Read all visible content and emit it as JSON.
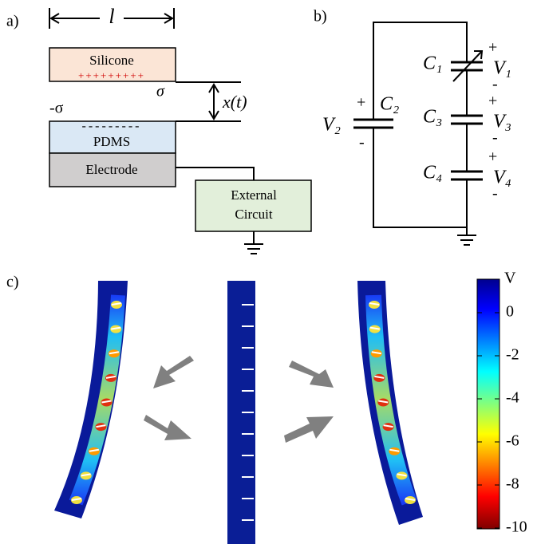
{
  "panel_a": {
    "label": "a)",
    "length_symbol": "l",
    "top_layer": "Silicone",
    "top_charges": "+++++++++",
    "top_charge_density": "σ",
    "gap": "x(t)",
    "bottom_charge_density": "-σ",
    "bottom_charges": "---------",
    "dielectric": "PDMS",
    "electrode": "Electrode",
    "circuit": [
      "External",
      "Circuit"
    ]
  },
  "panel_b": {
    "label": "b)",
    "source": {
      "name": "C₂",
      "voltage": "V₂",
      "plus": "+",
      "minus": "-"
    },
    "capacitors": [
      {
        "name": "C₁",
        "voltage": "V₁",
        "plus": "+",
        "minus": "-"
      },
      {
        "name": "C₃",
        "voltage": "V₃",
        "plus": "+",
        "minus": "-"
      },
      {
        "name": "C₄",
        "voltage": "V₄",
        "plus": "+",
        "minus": "-"
      }
    ]
  },
  "panel_c": {
    "label": "c)",
    "colorbar": {
      "unit": "V",
      "ticks": [
        0,
        -2,
        -4,
        -6,
        -8,
        -10
      ]
    }
  }
}
